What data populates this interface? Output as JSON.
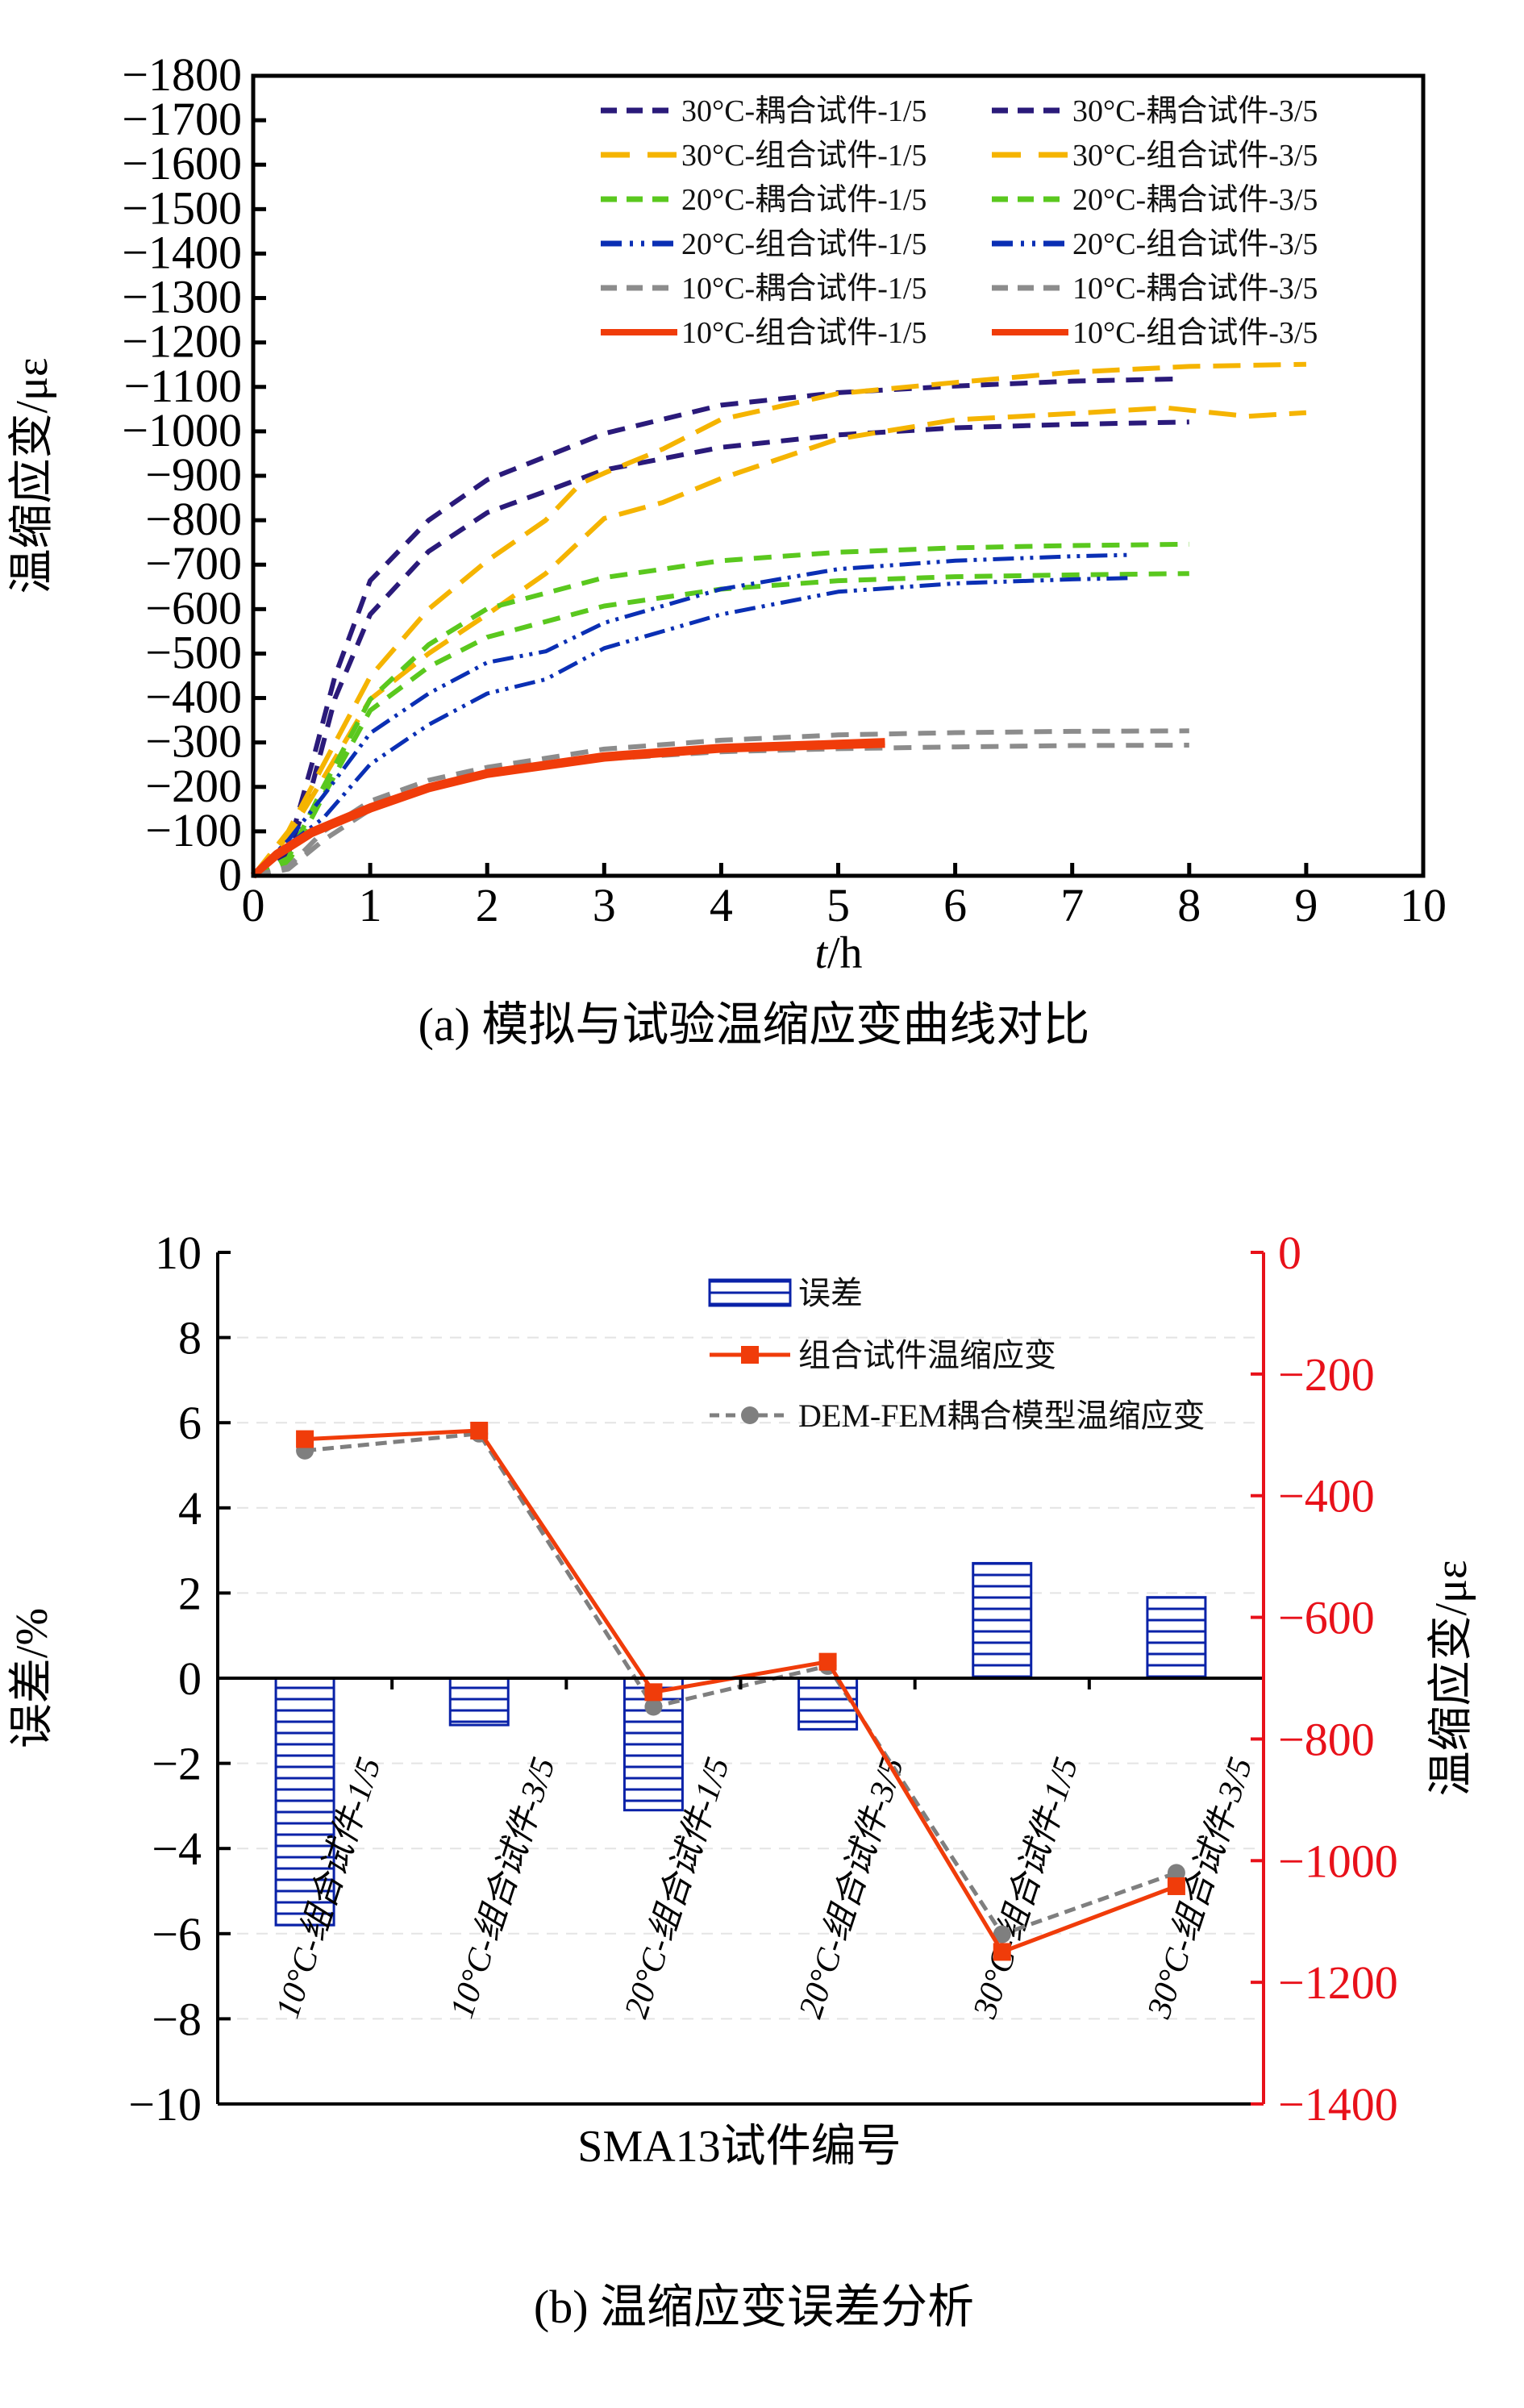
{
  "chart_data": [
    {
      "id": "a",
      "type": "line",
      "caption": "(a) 模拟与试验温缩应变曲线对比",
      "xlabel_italic": "t",
      "xlabel_unit": "/h",
      "ylabel": "温缩应变/με",
      "xlim": [
        0,
        10
      ],
      "ylim": [
        0,
        -1800
      ],
      "xticks": [
        "0",
        "1",
        "2",
        "3",
        "4",
        "5",
        "6",
        "7",
        "8",
        "9",
        "10"
      ],
      "yticks": [
        "0",
        "−100",
        "−200",
        "−300",
        "−400",
        "−500",
        "−600",
        "−700",
        "−800",
        "−900",
        "−1000",
        "−1100",
        "−1200",
        "−1300",
        "−1400",
        "−1500",
        "−1600",
        "−1700",
        "−1800"
      ],
      "grid": false,
      "legend_position": "top-right",
      "series": [
        {
          "name": "30°C-耦合试件-1/5",
          "color": "#2a1a7a",
          "style": "dash",
          "x": [
            0,
            0.3,
            0.5,
            0.7,
            1,
            1.5,
            2,
            3,
            4,
            5,
            6,
            7,
            7.9
          ],
          "y": [
            0,
            -60,
            -250,
            -450,
            -664,
            -800,
            -891,
            -995,
            -1059,
            -1087,
            -1102,
            -1113,
            -1118
          ]
        },
        {
          "name": "30°C-耦合试件-3/5",
          "color": "#2a1a7a",
          "style": "dash",
          "x": [
            0,
            0.3,
            0.5,
            0.7,
            1,
            1.5,
            2,
            3,
            4,
            5,
            6,
            7,
            8
          ],
          "y": [
            0,
            -50,
            -200,
            -400,
            -588,
            -730,
            -817,
            -913,
            -964,
            -992,
            -1008,
            -1016,
            -1021
          ]
        },
        {
          "name": "30°C-组合试件-1/5",
          "color": "#f5b400",
          "style": "longdash",
          "x": [
            0,
            0.3,
            0.6,
            1,
            1.5,
            2,
            2.5,
            2.8,
            3,
            3.5,
            4,
            5,
            6,
            7,
            8,
            9
          ],
          "y": [
            0,
            -100,
            -250,
            -448,
            -600,
            -709,
            -800,
            -883,
            -906,
            -960,
            -1027,
            -1085,
            -1110,
            -1133,
            -1146,
            -1151
          ]
        },
        {
          "name": "30°C-组合试件-3/5",
          "color": "#f5b400",
          "style": "longdash",
          "x": [
            0,
            0.3,
            0.6,
            1,
            1.5,
            2,
            2.5,
            3,
            3.5,
            4,
            5,
            6,
            7,
            7.8,
            8.5,
            9
          ],
          "y": [
            0,
            -90,
            -220,
            -397,
            -500,
            -588,
            -680,
            -804,
            -840,
            -894,
            -983,
            -1026,
            -1040,
            -1053,
            -1034,
            -1042
          ]
        },
        {
          "name": "20°C-耦合试件-1/5",
          "color": "#5ac81e",
          "style": "dash",
          "x": [
            0,
            0.3,
            0.6,
            1,
            1.5,
            2,
            3,
            4,
            5,
            6,
            7,
            8
          ],
          "y": [
            0,
            -40,
            -200,
            -397,
            -520,
            -601,
            -671,
            -709,
            -728,
            -738,
            -743,
            -746
          ]
        },
        {
          "name": "20°C-耦合试件-3/5",
          "color": "#5ac81e",
          "style": "dash",
          "x": [
            0,
            0.3,
            0.6,
            1,
            1.5,
            2,
            3,
            4,
            5,
            6,
            7,
            8
          ],
          "y": [
            0,
            -30,
            -180,
            -372,
            -470,
            -537,
            -607,
            -645,
            -664,
            -673,
            -677,
            -680
          ]
        },
        {
          "name": "20°C-组合试件-1/5",
          "color": "#0a2fb4",
          "style": "dashdotdot",
          "x": [
            0,
            0.3,
            0.6,
            1,
            1.5,
            2,
            2.5,
            3,
            4,
            5,
            6,
            7,
            7.5
          ],
          "y": [
            0,
            -80,
            -180,
            -321,
            -410,
            -480,
            -505,
            -569,
            -645,
            -690,
            -709,
            -719,
            -722
          ]
        },
        {
          "name": "20°C-组合试件-3/5",
          "color": "#0a2fb4",
          "style": "dashdotdot",
          "x": [
            0,
            0.3,
            0.6,
            1,
            1.5,
            2,
            2.5,
            3,
            4,
            5,
            6,
            7,
            7.5
          ],
          "y": [
            0,
            -70,
            -130,
            -251,
            -340,
            -410,
            -442,
            -512,
            -588,
            -639,
            -658,
            -667,
            -670
          ]
        },
        {
          "name": "10°C-耦合试件-1/5",
          "color": "#8c8c8c",
          "style": "dash",
          "x": [
            0,
            0.3,
            0.6,
            1,
            1.5,
            2,
            3,
            4,
            5,
            6,
            7,
            8
          ],
          "y": [
            0,
            -20,
            -100,
            -168,
            -215,
            -244,
            -285,
            -305,
            -317,
            -322,
            -325,
            -326
          ]
        },
        {
          "name": "10°C-耦合试件-3/5",
          "color": "#8c8c8c",
          "style": "dash",
          "x": [
            0,
            0.3,
            0.6,
            1,
            1.5,
            2,
            3,
            4,
            5,
            6,
            7,
            8
          ],
          "y": [
            0,
            -15,
            -80,
            -149,
            -200,
            -232,
            -263,
            -279,
            -286,
            -290,
            -293,
            -294
          ]
        },
        {
          "name": "10°C-组合试件-1/5",
          "color": "#f03c0a",
          "style": "solid",
          "x": [
            0,
            0.2,
            0.5,
            1,
            1.5,
            2,
            3,
            4,
            5,
            5.4
          ],
          "y": [
            0,
            -50,
            -100,
            -155,
            -200,
            -232,
            -270,
            -289,
            -298,
            -302
          ]
        },
        {
          "name": "10°C-组合试件-3/5",
          "color": "#f03c0a",
          "style": "solid",
          "x": [
            0,
            0.2,
            0.5,
            1,
            1.5,
            2,
            3,
            4,
            5,
            5.4
          ],
          "y": [
            0,
            -45,
            -95,
            -150,
            -196,
            -228,
            -265,
            -285,
            -293,
            -296
          ]
        }
      ]
    },
    {
      "id": "b",
      "type": "bar",
      "caption": "(b) 温缩应变误差分析",
      "xlabel": "SMA13试件编号",
      "ylabel_left": "误差/%",
      "ylabel_right": "温缩应变/με",
      "categories": [
        "10°C-组合试件-1/5",
        "10°C-组合试件-3/5",
        "20°C-组合试件-1/5",
        "20°C-组合试件-3/5",
        "30°C-组合试件-1/5",
        "30°C-组合试件-3/5"
      ],
      "ylim_left": [
        -10,
        10
      ],
      "ylim_right": [
        -1400,
        0
      ],
      "yticks_left": [
        "10",
        "8",
        "6",
        "4",
        "2",
        "0",
        "−2",
        "−4",
        "−6",
        "−8",
        "−10"
      ],
      "yticks_right": [
        "0",
        "−200",
        "−400",
        "−600",
        "−800",
        "−1000",
        "−1200",
        "−1400"
      ],
      "grid": "dashed-horizontal",
      "legend_position": "top-right",
      "right_axis_color": "#e8111a",
      "series": [
        {
          "name": "误差",
          "type": "bar",
          "axis": "left",
          "color": "#0a22a8",
          "pattern": "horizontal-hatch",
          "values": [
            -5.8,
            -1.1,
            -3.1,
            -1.2,
            2.7,
            1.9
          ]
        },
        {
          "name": "组合试件温缩应变",
          "type": "line",
          "axis": "right",
          "color": "#f03c0a",
          "marker": "square",
          "style": "solid",
          "values": [
            -307,
            -293,
            -723,
            -673,
            -1150,
            -1042
          ]
        },
        {
          "name": "DEM-FEM耦合模型温缩应变",
          "type": "line",
          "axis": "right",
          "color": "#7f7f7f",
          "marker": "circle",
          "style": "dash",
          "values": [
            -326,
            -298,
            -747,
            -680,
            -1121,
            -1020
          ]
        }
      ]
    }
  ]
}
